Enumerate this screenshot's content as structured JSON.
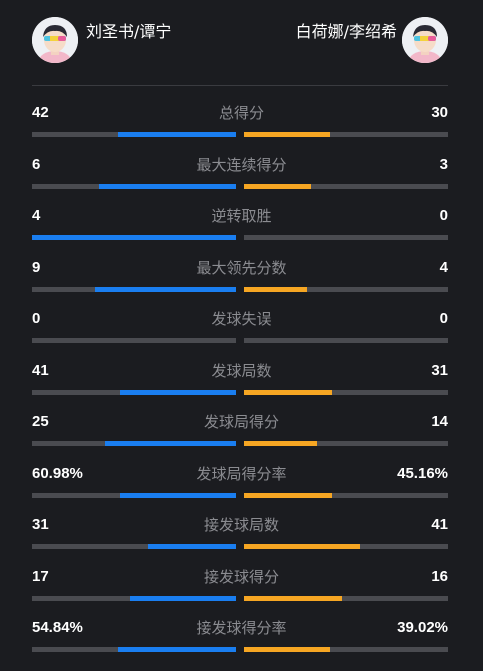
{
  "players": {
    "left": {
      "name": "刘圣书/谭宁",
      "color": "#1a7ef0"
    },
    "right": {
      "name": "白荷娜/李绍希",
      "color": "#f6a623"
    }
  },
  "stats": [
    {
      "label": "总得分",
      "left": "42",
      "right": "30",
      "left_fill": 0.58,
      "right_fill": 0.42
    },
    {
      "label": "最大连续得分",
      "left": "6",
      "right": "3",
      "left_fill": 0.67,
      "right_fill": 0.33
    },
    {
      "label": "逆转取胜",
      "left": "4",
      "right": "0",
      "left_fill": 1.0,
      "right_fill": 0.0
    },
    {
      "label": "最大领先分数",
      "left": "9",
      "right": "4",
      "left_fill": 0.69,
      "right_fill": 0.31
    },
    {
      "label": "发球失误",
      "left": "0",
      "right": "0",
      "left_fill": 0.0,
      "right_fill": 0.0
    },
    {
      "label": "发球局数",
      "left": "41",
      "right": "31",
      "left_fill": 0.57,
      "right_fill": 0.43
    },
    {
      "label": "发球局得分",
      "left": "25",
      "right": "14",
      "left_fill": 0.64,
      "right_fill": 0.36
    },
    {
      "label": "发球局得分率",
      "left": "60.98%",
      "right": "45.16%",
      "left_fill": 0.57,
      "right_fill": 0.43
    },
    {
      "label": "接发球局数",
      "left": "31",
      "right": "41",
      "left_fill": 0.43,
      "right_fill": 0.57
    },
    {
      "label": "接发球得分",
      "left": "17",
      "right": "16",
      "left_fill": 0.52,
      "right_fill": 0.48
    },
    {
      "label": "接发球得分率",
      "left": "54.84%",
      "right": "39.02%",
      "left_fill": 0.58,
      "right_fill": 0.42
    }
  ]
}
